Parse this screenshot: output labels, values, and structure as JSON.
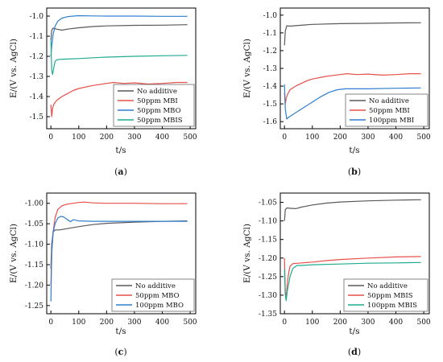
{
  "colors": {
    "no_additive": "#595959",
    "mbi": "#e8504a",
    "mbo": "#2f7fd0",
    "mbis": "#1fab8e",
    "axis": "#000000"
  },
  "chart_data": [
    {
      "id": "a",
      "caption": "(a)",
      "type": "line",
      "xlabel": "t/s",
      "ylabel": "E/(V vs. AgCl)",
      "xlim": [
        -15,
        520
      ],
      "ylim": [
        -1.56,
        -0.96
      ],
      "xticks": [
        0,
        100,
        200,
        300,
        400,
        500
      ],
      "yticks": [
        -1.0,
        -1.1,
        -1.2,
        -1.3,
        -1.4,
        -1.5
      ],
      "ytick_labels": [
        "-1.0",
        "-1.1",
        "-1.2",
        "-1.3",
        "-1.4",
        "-1.5"
      ],
      "legend_position": "bottom-right",
      "series": [
        {
          "name": "No additive",
          "color": "no_additive",
          "points": [
            [
              0,
              -1.12
            ],
            [
              3,
              -1.07
            ],
            [
              8,
              -1.06
            ],
            [
              20,
              -1.065
            ],
            [
              40,
              -1.07
            ],
            [
              60,
              -1.065
            ],
            [
              100,
              -1.058
            ],
            [
              150,
              -1.052
            ],
            [
              200,
              -1.049
            ],
            [
              300,
              -1.046
            ],
            [
              400,
              -1.045
            ],
            [
              490,
              -1.043
            ]
          ]
        },
        {
          "name": "50ppm MBI",
          "color": "mbi",
          "points": [
            [
              0,
              -1.44
            ],
            [
              3,
              -1.5
            ],
            [
              6,
              -1.46
            ],
            [
              10,
              -1.44
            ],
            [
              20,
              -1.42
            ],
            [
              40,
              -1.4
            ],
            [
              60,
              -1.385
            ],
            [
              80,
              -1.37
            ],
            [
              100,
              -1.36
            ],
            [
              150,
              -1.345
            ],
            [
              200,
              -1.335
            ],
            [
              225,
              -1.33
            ],
            [
              260,
              -1.335
            ],
            [
              300,
              -1.332
            ],
            [
              350,
              -1.338
            ],
            [
              400,
              -1.335
            ],
            [
              450,
              -1.33
            ],
            [
              490,
              -1.33
            ]
          ]
        },
        {
          "name": "50ppm MBO",
          "color": "mbo",
          "points": [
            [
              0,
              -1.2
            ],
            [
              3,
              -1.15
            ],
            [
              8,
              -1.09
            ],
            [
              15,
              -1.05
            ],
            [
              25,
              -1.025
            ],
            [
              40,
              -1.01
            ],
            [
              60,
              -1.003
            ],
            [
              80,
              -1.0
            ],
            [
              100,
              -0.998
            ],
            [
              150,
              -0.999
            ],
            [
              200,
              -1.0
            ],
            [
              300,
              -1.0
            ],
            [
              400,
              -1.001
            ],
            [
              490,
              -1.001
            ]
          ]
        },
        {
          "name": "50ppm MBIS",
          "color": "mbis",
          "points": [
            [
              0,
              -1.12
            ],
            [
              3,
              -1.27
            ],
            [
              6,
              -1.29
            ],
            [
              10,
              -1.26
            ],
            [
              15,
              -1.225
            ],
            [
              20,
              -1.218
            ],
            [
              30,
              -1.215
            ],
            [
              50,
              -1.214
            ],
            [
              100,
              -1.211
            ],
            [
              150,
              -1.207
            ],
            [
              200,
              -1.204
            ],
            [
              300,
              -1.2
            ],
            [
              400,
              -1.197
            ],
            [
              490,
              -1.195
            ]
          ]
        }
      ]
    },
    {
      "id": "b",
      "caption": "(b)",
      "type": "line",
      "xlabel": "t/s",
      "ylabel": "E/(V vs. AgCl)",
      "xlim": [
        -15,
        520
      ],
      "ylim": [
        -1.64,
        -0.96
      ],
      "xticks": [
        0,
        100,
        200,
        300,
        400,
        500
      ],
      "yticks": [
        -1.0,
        -1.1,
        -1.2,
        -1.3,
        -1.4,
        -1.5,
        -1.6
      ],
      "ytick_labels": [
        "-1.0",
        "-1.1",
        "-1.2",
        "-1.3",
        "-1.4",
        "-1.5",
        "-1.6"
      ],
      "legend_position": "bottom-right",
      "series": [
        {
          "name": "No additive",
          "color": "no_additive",
          "points": [
            [
              0,
              -1.17
            ],
            [
              3,
              -1.09
            ],
            [
              8,
              -1.06
            ],
            [
              20,
              -1.062
            ],
            [
              50,
              -1.058
            ],
            [
              100,
              -1.052
            ],
            [
              200,
              -1.048
            ],
            [
              300,
              -1.046
            ],
            [
              400,
              -1.044
            ],
            [
              490,
              -1.043
            ]
          ]
        },
        {
          "name": "50ppm MBI",
          "color": "mbi",
          "points": [
            [
              0,
              -1.44
            ],
            [
              3,
              -1.5
            ],
            [
              6,
              -1.47
            ],
            [
              10,
              -1.45
            ],
            [
              20,
              -1.42
            ],
            [
              40,
              -1.4
            ],
            [
              60,
              -1.385
            ],
            [
              80,
              -1.37
            ],
            [
              100,
              -1.36
            ],
            [
              150,
              -1.345
            ],
            [
              200,
              -1.335
            ],
            [
              225,
              -1.33
            ],
            [
              260,
              -1.335
            ],
            [
              300,
              -1.332
            ],
            [
              350,
              -1.338
            ],
            [
              400,
              -1.335
            ],
            [
              450,
              -1.33
            ],
            [
              490,
              -1.33
            ]
          ]
        },
        {
          "name": "100ppm MBI",
          "color": "mbo",
          "points": [
            [
              0,
              -1.39
            ],
            [
              3,
              -1.53
            ],
            [
              8,
              -1.585
            ],
            [
              15,
              -1.575
            ],
            [
              30,
              -1.56
            ],
            [
              50,
              -1.54
            ],
            [
              80,
              -1.51
            ],
            [
              100,
              -1.49
            ],
            [
              130,
              -1.46
            ],
            [
              160,
              -1.435
            ],
            [
              190,
              -1.42
            ],
            [
              220,
              -1.415
            ],
            [
              300,
              -1.415
            ],
            [
              400,
              -1.412
            ],
            [
              490,
              -1.41
            ]
          ]
        }
      ]
    },
    {
      "id": "c",
      "caption": "(c)",
      "type": "line",
      "xlabel": "t/s",
      "ylabel": "E/(V vs. AgCl)",
      "xlim": [
        -15,
        520
      ],
      "ylim": [
        -1.27,
        -0.975
      ],
      "xticks": [
        0,
        100,
        200,
        300,
        400,
        500
      ],
      "yticks": [
        -1.0,
        -1.05,
        -1.1,
        -1.15,
        -1.2,
        -1.25
      ],
      "ytick_labels": [
        "-1.00",
        "-1.05",
        "-1.10",
        "-1.15",
        "-1.20",
        "-1.25"
      ],
      "legend_position": "bottom-right",
      "series": [
        {
          "name": "No additive",
          "color": "no_additive",
          "points": [
            [
              0,
              -1.16
            ],
            [
              3,
              -1.1
            ],
            [
              8,
              -1.07
            ],
            [
              15,
              -1.065
            ],
            [
              30,
              -1.065
            ],
            [
              50,
              -1.063
            ],
            [
              100,
              -1.057
            ],
            [
              150,
              -1.052
            ],
            [
              200,
              -1.049
            ],
            [
              300,
              -1.046
            ],
            [
              400,
              -1.044
            ],
            [
              490,
              -1.043
            ]
          ]
        },
        {
          "name": "50ppm MBO",
          "color": "mbi",
          "points": [
            [
              0,
              -1.2
            ],
            [
              3,
              -1.12
            ],
            [
              8,
              -1.07
            ],
            [
              15,
              -1.035
            ],
            [
              25,
              -1.015
            ],
            [
              40,
              -1.006
            ],
            [
              60,
              -1.002
            ],
            [
              100,
              -0.998
            ],
            [
              120,
              -0.997
            ],
            [
              150,
              -0.999
            ],
            [
              200,
              -1.0
            ],
            [
              300,
              -1.0
            ],
            [
              400,
              -1.001
            ],
            [
              490,
              -1.001
            ]
          ]
        },
        {
          "name": "100ppm MBO",
          "color": "mbo",
          "points": [
            [
              0,
              -1.24
            ],
            [
              3,
              -1.12
            ],
            [
              8,
              -1.07
            ],
            [
              15,
              -1.05
            ],
            [
              25,
              -1.036
            ],
            [
              35,
              -1.032
            ],
            [
              45,
              -1.033
            ],
            [
              60,
              -1.04
            ],
            [
              70,
              -1.045
            ],
            [
              80,
              -1.04
            ],
            [
              100,
              -1.043
            ],
            [
              150,
              -1.044
            ],
            [
              200,
              -1.044
            ],
            [
              300,
              -1.044
            ],
            [
              400,
              -1.044
            ],
            [
              490,
              -1.044
            ]
          ]
        }
      ]
    },
    {
      "id": "d",
      "caption": "(d)",
      "type": "line",
      "xlabel": "t/s",
      "ylabel": "E/(V vs. AgCl)",
      "xlim": [
        -15,
        520
      ],
      "ylim": [
        -1.35,
        -1.025
      ],
      "xticks": [
        0,
        100,
        200,
        300,
        400,
        500
      ],
      "yticks": [
        -1.05,
        -1.1,
        -1.15,
        -1.2,
        -1.25,
        -1.3,
        -1.35
      ],
      "ytick_labels": [
        "-1.05",
        "-1.10",
        "-1.15",
        "-1.20",
        "-1.25",
        "-1.30",
        "-1.35"
      ],
      "legend_position": "bottom-right",
      "series": [
        {
          "name": "No additive",
          "color": "no_additive",
          "points": [
            [
              0,
              -1.1
            ],
            [
              3,
              -1.07
            ],
            [
              8,
              -1.065
            ],
            [
              20,
              -1.066
            ],
            [
              40,
              -1.067
            ],
            [
              60,
              -1.063
            ],
            [
              100,
              -1.057
            ],
            [
              150,
              -1.052
            ],
            [
              200,
              -1.049
            ],
            [
              300,
              -1.046
            ],
            [
              400,
              -1.044
            ],
            [
              490,
              -1.043
            ]
          ]
        },
        {
          "name": "50ppm MBIS",
          "color": "mbi",
          "points": [
            [
              0,
              -1.2
            ],
            [
              3,
              -1.29
            ],
            [
              6,
              -1.31
            ],
            [
              10,
              -1.27
            ],
            [
              15,
              -1.24
            ],
            [
              20,
              -1.222
            ],
            [
              30,
              -1.215
            ],
            [
              50,
              -1.214
            ],
            [
              100,
              -1.211
            ],
            [
              150,
              -1.207
            ],
            [
              200,
              -1.204
            ],
            [
              300,
              -1.2
            ],
            [
              400,
              -1.197
            ],
            [
              490,
              -1.196
            ]
          ]
        },
        {
          "name": "100ppm MBIS",
          "color": "mbis",
          "points": [
            [
              0,
              -1.23
            ],
            [
              3,
              -1.3
            ],
            [
              6,
              -1.315
            ],
            [
              10,
              -1.29
            ],
            [
              20,
              -1.25
            ],
            [
              30,
              -1.228
            ],
            [
              45,
              -1.22
            ],
            [
              60,
              -1.22
            ],
            [
              100,
              -1.218
            ],
            [
              200,
              -1.216
            ],
            [
              300,
              -1.214
            ],
            [
              400,
              -1.213
            ],
            [
              490,
              -1.212
            ]
          ]
        }
      ]
    }
  ]
}
